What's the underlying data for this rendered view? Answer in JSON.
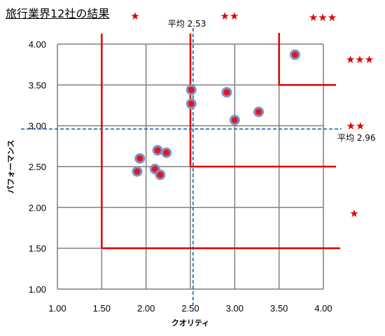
{
  "chart_data": {
    "type": "scatter",
    "title": "旅行業界12社の結果",
    "xlabel": "クオリティ",
    "ylabel": "パフォーマンス",
    "xlim": [
      1.0,
      4.0
    ],
    "ylim": [
      1.0,
      4.0
    ],
    "x_ticks": [
      "1.00",
      "1.50",
      "2.00",
      "2.50",
      "3.00",
      "3.50",
      "4.00"
    ],
    "y_ticks": [
      "1.00",
      "1.50",
      "2.00",
      "2.50",
      "3.00",
      "3.50",
      "4.00"
    ],
    "grid": true,
    "points": [
      {
        "x": 1.9,
        "y": 2.44
      },
      {
        "x": 1.93,
        "y": 2.6
      },
      {
        "x": 2.1,
        "y": 2.47
      },
      {
        "x": 2.13,
        "y": 2.7
      },
      {
        "x": 2.16,
        "y": 2.4
      },
      {
        "x": 2.23,
        "y": 2.67
      },
      {
        "x": 2.51,
        "y": 3.44
      },
      {
        "x": 2.51,
        "y": 3.27
      },
      {
        "x": 2.91,
        "y": 3.41
      },
      {
        "x": 3.0,
        "y": 3.07
      },
      {
        "x": 3.27,
        "y": 3.17
      },
      {
        "x": 3.68,
        "y": 3.87
      }
    ],
    "averages": {
      "x_label": "平均 2.53",
      "x_value": 2.53,
      "y_label": "平均 2.96",
      "y_value": 2.96
    },
    "star_ratings": [
      "★",
      "★★",
      "★★★",
      "★★★",
      "★★",
      "★"
    ],
    "colors": {
      "point_fill": "#e8141b",
      "point_ring": "#7b93c8",
      "zone_line": "#e00000",
      "avg_line": "#1f5fa8",
      "grid": "#7f7f7f"
    }
  }
}
